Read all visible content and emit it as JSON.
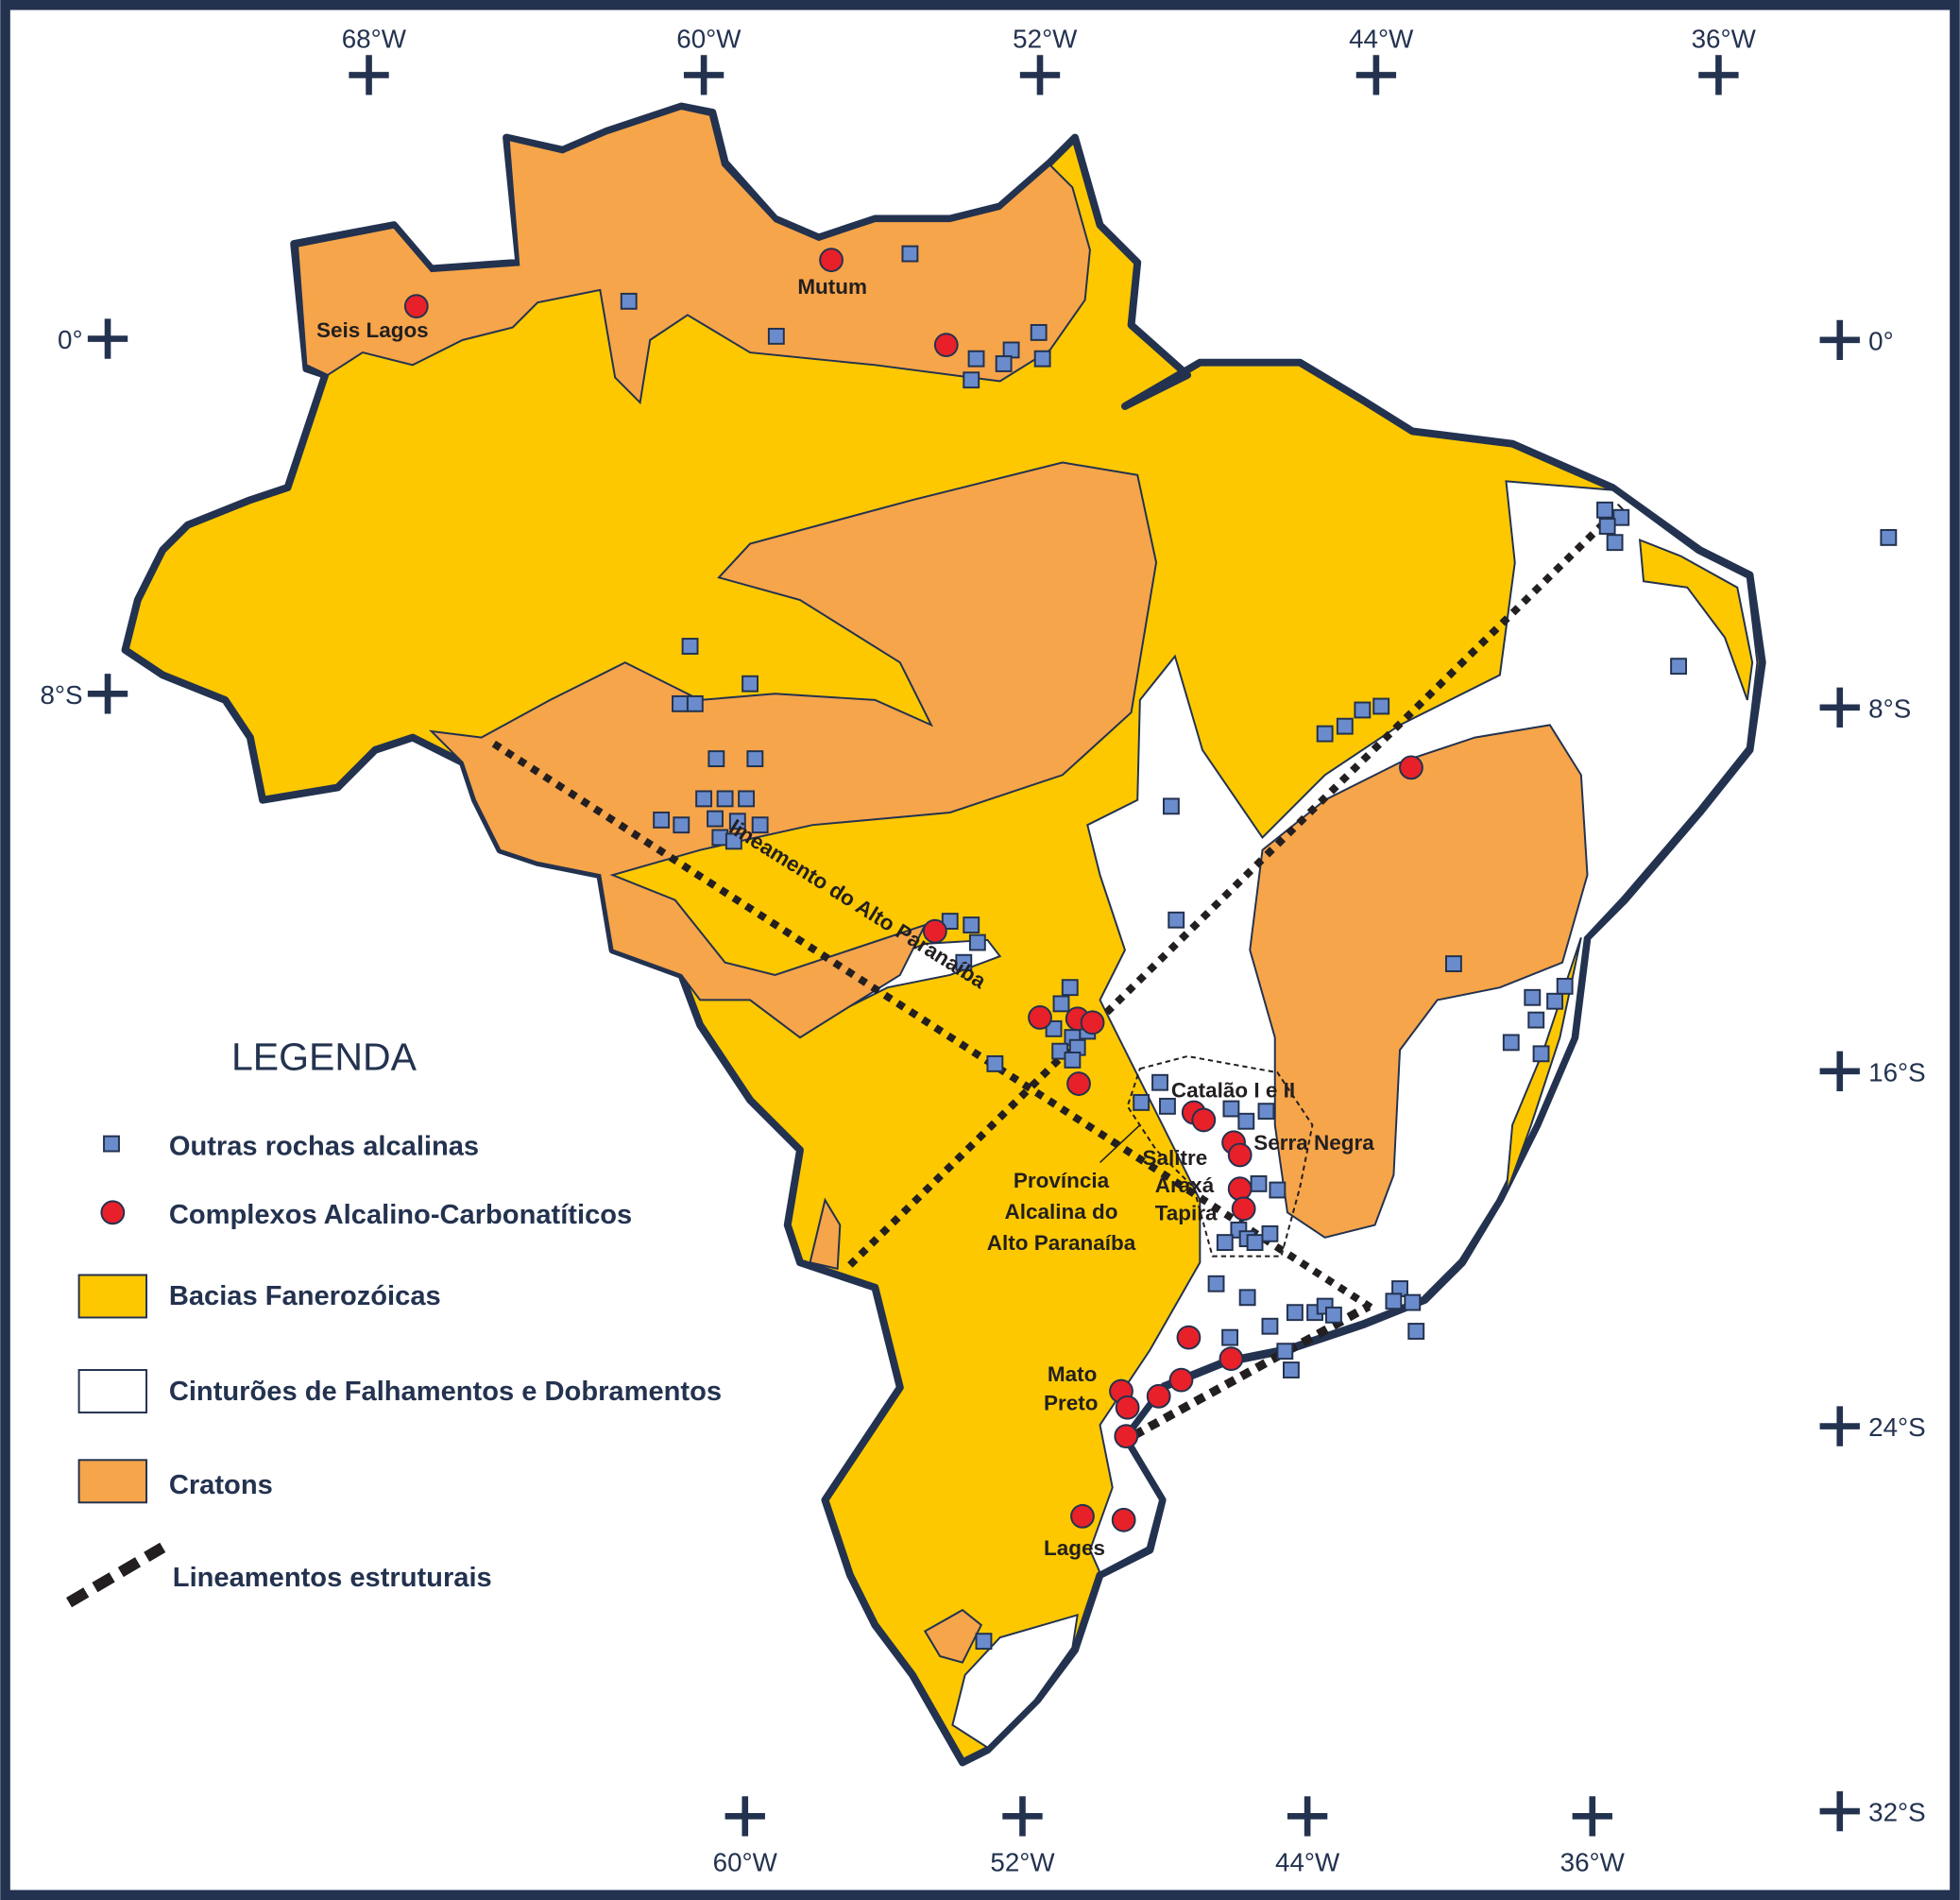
{
  "map": {
    "colors": {
      "bacias": "#fdc800",
      "cratons": "#f6a54a",
      "cinturoes": "#ffffff",
      "outline": "#23324f",
      "alcalinas": "#6b8ccc",
      "carbonatiticos": "#e8202a",
      "lineamentos": "#231f20"
    },
    "top_longitudes": [
      "68°W",
      "60°W",
      "52°W",
      "44°W",
      "36°W"
    ],
    "bottom_longitudes": [
      "60°W",
      "52°W",
      "44°W",
      "36°W"
    ],
    "left_latitudes": [
      "0°",
      "8°S"
    ],
    "right_latitudes": [
      "0°",
      "8°S",
      "16°S",
      "24°S",
      "32°S"
    ],
    "labels": {
      "seis_lagos": "Seis Lagos",
      "mutum": "Mutum",
      "catalao": "Catalão I e II",
      "serra_negra": "Serra Negra",
      "salitre": "Salitre",
      "araxa": "Araxá",
      "tapira": "Tapira",
      "provincia_1": "Província",
      "provincia_2": "Alcalina do",
      "provincia_3": "Alto Paranaíba",
      "mato_preto_1": "Mato",
      "mato_preto_2": "Preto",
      "lages": "Lages",
      "lineamento": "lineamento do Alto Paranaíba"
    }
  },
  "legend": {
    "title": "LEGENDA",
    "items": [
      {
        "symbol": "square-icon",
        "label": "Outras rochas alcalinas"
      },
      {
        "symbol": "circle-icon",
        "label": "Complexos Alcalino-Carbonatíticos"
      },
      {
        "symbol": "yellow-box",
        "label": "Bacias Fanerozóicas"
      },
      {
        "symbol": "white-box",
        "label": "Cinturões de Falhamentos e Dobramentos"
      },
      {
        "symbol": "orange-box",
        "label": "Cratons"
      },
      {
        "symbol": "dashed-line",
        "label": "Lineamentos estruturais"
      }
    ]
  }
}
